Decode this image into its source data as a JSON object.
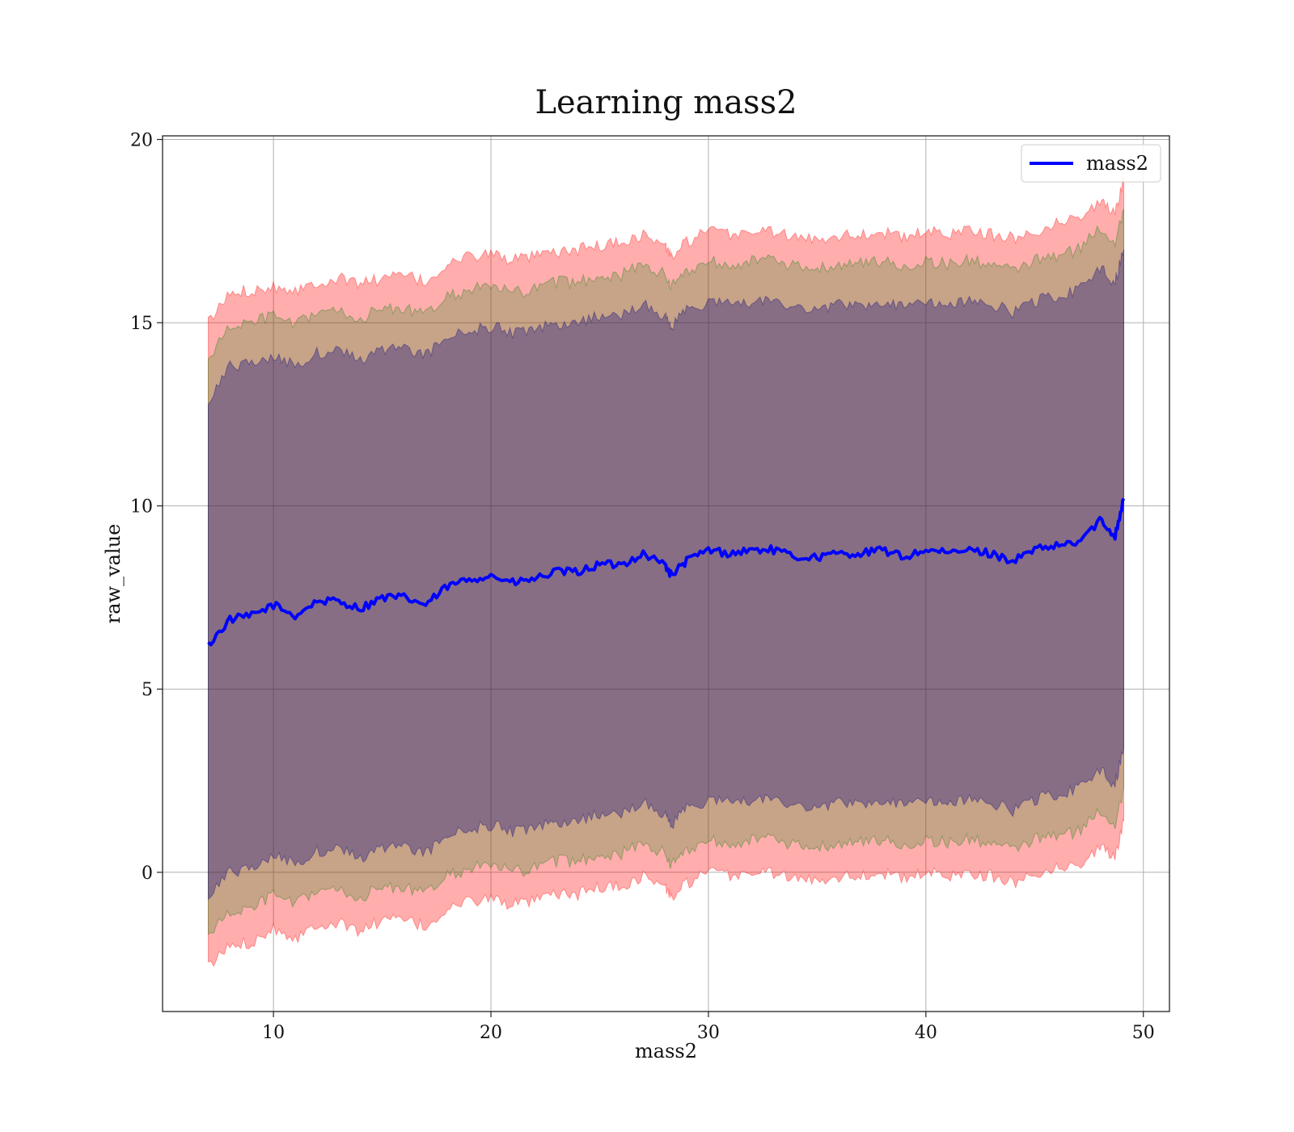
{
  "chart_data": {
    "type": "area",
    "title": "Learning mass2",
    "xlabel": "mass2",
    "ylabel": "raw_value",
    "xlim": [
      4.9,
      51.2
    ],
    "ylim": [
      -3.8,
      20.1
    ],
    "xticks": [
      10,
      20,
      30,
      40,
      50
    ],
    "yticks": [
      0,
      5,
      10,
      15,
      20
    ],
    "grid": true,
    "legend": {
      "position": "top-right",
      "entries": [
        "mass2"
      ]
    },
    "x": [
      7.0,
      8.0,
      9.0,
      10.0,
      11.0,
      12.0,
      13.0,
      14.0,
      15.0,
      16.0,
      17.0,
      18.0,
      19.0,
      20.0,
      21.0,
      22.0,
      23.0,
      24.0,
      25.0,
      26.0,
      27.0,
      28.0,
      28.3,
      29.0,
      30.0,
      31.0,
      32.0,
      33.0,
      34.0,
      35.0,
      36.0,
      37.0,
      38.0,
      39.0,
      40.0,
      41.0,
      42.0,
      43.0,
      44.0,
      45.0,
      46.0,
      47.0,
      48.0,
      48.7,
      49.1
    ],
    "series": [
      {
        "name": "mass2",
        "color": "#0000ff",
        "values": [
          6.2,
          6.9,
          7.0,
          7.3,
          7.0,
          7.4,
          7.4,
          7.2,
          7.5,
          7.5,
          7.3,
          7.8,
          8.0,
          8.1,
          7.9,
          8.0,
          8.2,
          8.2,
          8.4,
          8.4,
          8.7,
          8.4,
          8.1,
          8.5,
          8.8,
          8.7,
          8.8,
          8.8,
          8.6,
          8.6,
          8.7,
          8.7,
          8.8,
          8.6,
          8.8,
          8.7,
          8.8,
          8.7,
          8.5,
          8.8,
          8.9,
          9.0,
          9.6,
          9.2,
          10.2
        ]
      }
    ],
    "bands": [
      {
        "color": "#ff0000",
        "opacity": 0.32,
        "upper": [
          15.0,
          15.8,
          15.9,
          16.0,
          15.9,
          16.1,
          16.2,
          16.1,
          16.2,
          16.3,
          16.1,
          16.6,
          16.8,
          16.9,
          16.7,
          16.8,
          16.9,
          17.0,
          17.1,
          17.2,
          17.4,
          17.1,
          16.8,
          17.2,
          17.5,
          17.4,
          17.5,
          17.5,
          17.3,
          17.3,
          17.4,
          17.4,
          17.5,
          17.3,
          17.5,
          17.4,
          17.6,
          17.4,
          17.3,
          17.5,
          17.7,
          17.9,
          18.3,
          18.0,
          18.9
        ],
        "lower": [
          -2.6,
          -2.0,
          -1.9,
          -1.5,
          -1.8,
          -1.4,
          -1.4,
          -1.6,
          -1.3,
          -1.3,
          -1.5,
          -1.0,
          -0.8,
          -0.7,
          -0.9,
          -0.8,
          -0.6,
          -0.6,
          -0.4,
          -0.4,
          -0.1,
          -0.4,
          -0.7,
          -0.3,
          0.0,
          -0.1,
          0.0,
          0.0,
          -0.2,
          -0.2,
          -0.1,
          -0.1,
          0.0,
          -0.2,
          0.0,
          -0.1,
          0.0,
          -0.1,
          -0.3,
          0.0,
          0.1,
          0.2,
          0.7,
          0.4,
          1.4
        ]
      },
      {
        "color": "#008000",
        "opacity": 0.22,
        "upper": [
          14.0,
          14.9,
          15.0,
          15.2,
          14.9,
          15.3,
          15.3,
          15.1,
          15.4,
          15.4,
          15.2,
          15.7,
          15.9,
          16.0,
          15.8,
          15.9,
          16.1,
          16.1,
          16.3,
          16.3,
          16.6,
          16.3,
          16.0,
          16.4,
          16.7,
          16.6,
          16.7,
          16.7,
          16.5,
          16.5,
          16.6,
          16.6,
          16.7,
          16.5,
          16.7,
          16.6,
          16.7,
          16.6,
          16.4,
          16.7,
          16.8,
          17.0,
          17.6,
          17.2,
          18.1
        ],
        "lower": [
          -1.7,
          -1.1,
          -1.0,
          -0.6,
          -0.9,
          -0.5,
          -0.5,
          -0.7,
          -0.4,
          -0.4,
          -0.6,
          -0.1,
          0.1,
          0.2,
          0.0,
          0.1,
          0.3,
          0.3,
          0.5,
          0.5,
          0.8,
          0.5,
          0.2,
          0.6,
          0.9,
          0.8,
          0.9,
          0.9,
          0.7,
          0.7,
          0.8,
          0.8,
          0.9,
          0.7,
          0.9,
          0.8,
          0.9,
          0.8,
          0.6,
          0.9,
          1.0,
          1.1,
          1.7,
          1.3,
          2.3
        ]
      },
      {
        "color": "#000080",
        "opacity": 0.32,
        "upper": [
          12.9,
          13.8,
          13.9,
          14.1,
          13.8,
          14.2,
          14.2,
          14.0,
          14.3,
          14.3,
          14.1,
          14.6,
          14.8,
          14.9,
          14.7,
          14.8,
          15.0,
          15.0,
          15.2,
          15.2,
          15.5,
          15.2,
          14.9,
          15.3,
          15.6,
          15.5,
          15.6,
          15.6,
          15.4,
          15.4,
          15.5,
          15.5,
          15.6,
          15.4,
          15.6,
          15.5,
          15.6,
          15.5,
          15.3,
          15.6,
          15.7,
          15.9,
          16.5,
          16.1,
          17.0
        ],
        "lower": [
          -0.6,
          0.0,
          0.1,
          0.5,
          0.2,
          0.6,
          0.6,
          0.4,
          0.7,
          0.7,
          0.5,
          1.0,
          1.2,
          1.3,
          1.1,
          1.2,
          1.4,
          1.4,
          1.6,
          1.6,
          1.9,
          1.6,
          1.3,
          1.7,
          2.0,
          1.9,
          2.0,
          2.0,
          1.8,
          1.8,
          1.9,
          1.9,
          2.0,
          1.8,
          2.0,
          1.9,
          2.0,
          1.9,
          1.7,
          2.0,
          2.1,
          2.3,
          2.8,
          2.4,
          3.4
        ]
      }
    ]
  }
}
